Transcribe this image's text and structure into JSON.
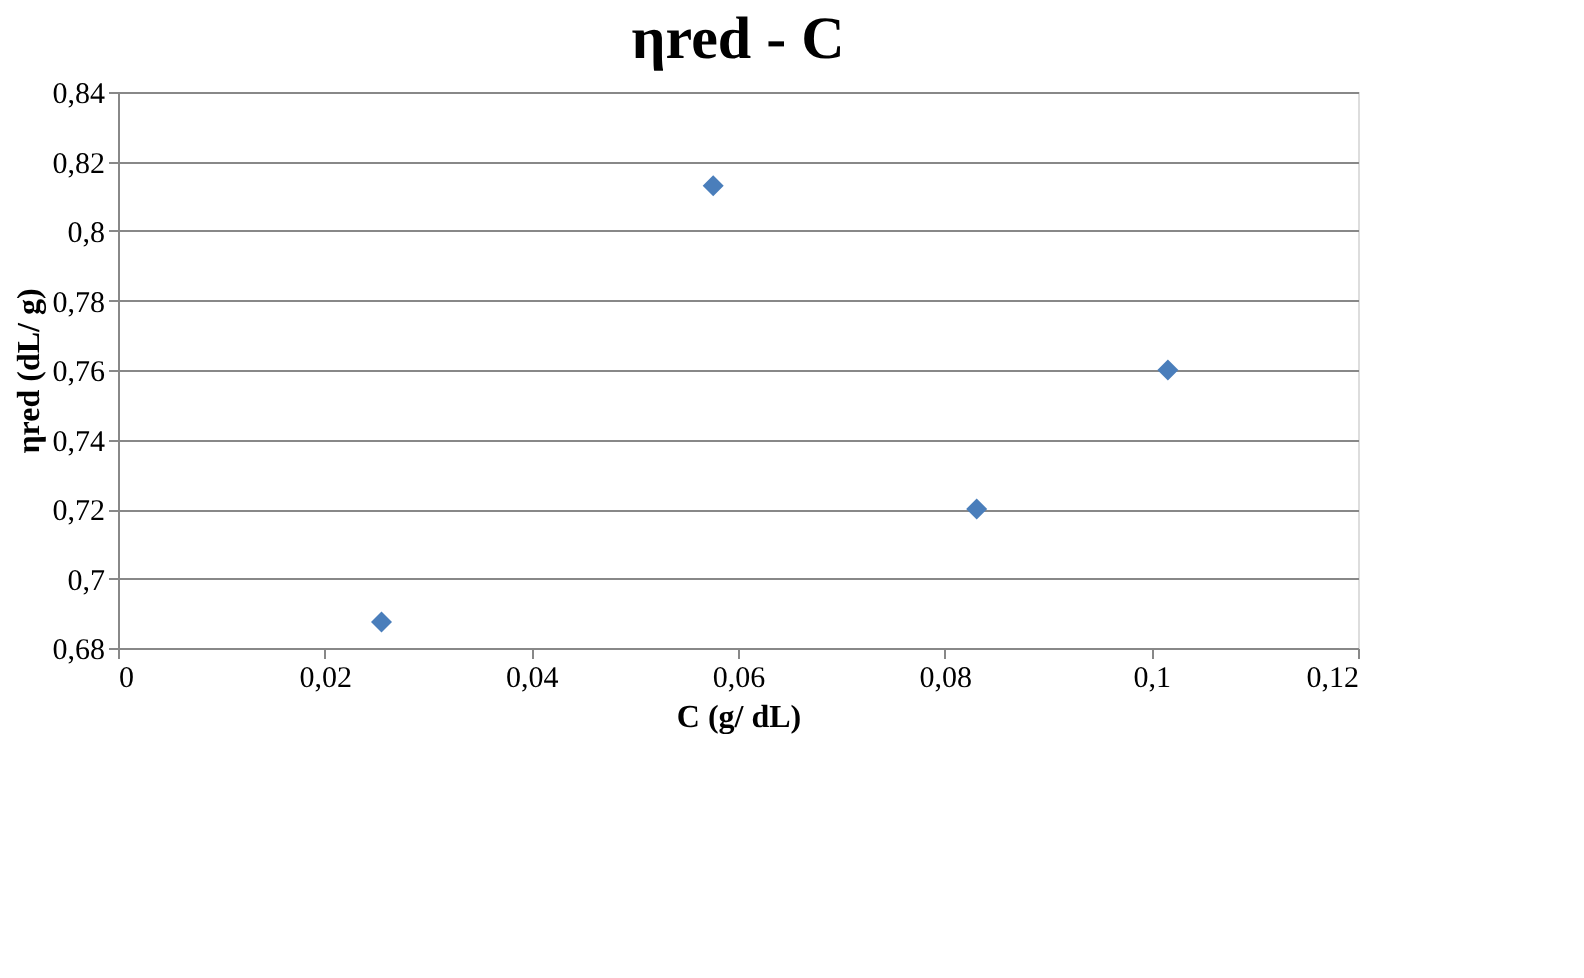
{
  "chart_data": {
    "type": "scatter",
    "title": "ηred - C",
    "xlabel": "C (g/ dL)",
    "ylabel": "ηred (dL/ g)",
    "x": [
      0.0255,
      0.0576,
      0.0831,
      0.1016
    ],
    "series": [
      {
        "color": "#4a7ebb",
        "values": [
          0.6875,
          0.813,
          0.72,
          0.76
        ]
      }
    ],
    "marker": "diamond",
    "grid": "y",
    "xlim": [
      0,
      0.12
    ],
    "xticks": [
      0,
      {
        "value": 0.02,
        "label": "0,02"
      },
      {
        "value": 0.04,
        "label": "0,04"
      },
      {
        "value": 0.06,
        "label": "0,06"
      },
      {
        "value": 0.08,
        "label": "0,08"
      },
      {
        "value": 0.1,
        "label": "0,1"
      },
      {
        "value": 0.12,
        "label": "0,12"
      }
    ],
    "ylim": [
      0.68,
      0.84
    ],
    "yticks": [
      {
        "value": 0.68,
        "label": "0,68"
      },
      {
        "value": 0.7,
        "label": "0,7"
      },
      {
        "value": 0.72,
        "label": "0,72"
      },
      {
        "value": 0.74,
        "label": "0,74"
      },
      {
        "value": 0.76,
        "label": "0,76"
      },
      {
        "value": 0.78,
        "label": "0,78"
      },
      {
        "value": 0.8,
        "label": "0,8"
      },
      {
        "value": 0.82,
        "label": "0,82"
      },
      {
        "value": 0.84,
        "label": "0,84"
      }
    ]
  }
}
